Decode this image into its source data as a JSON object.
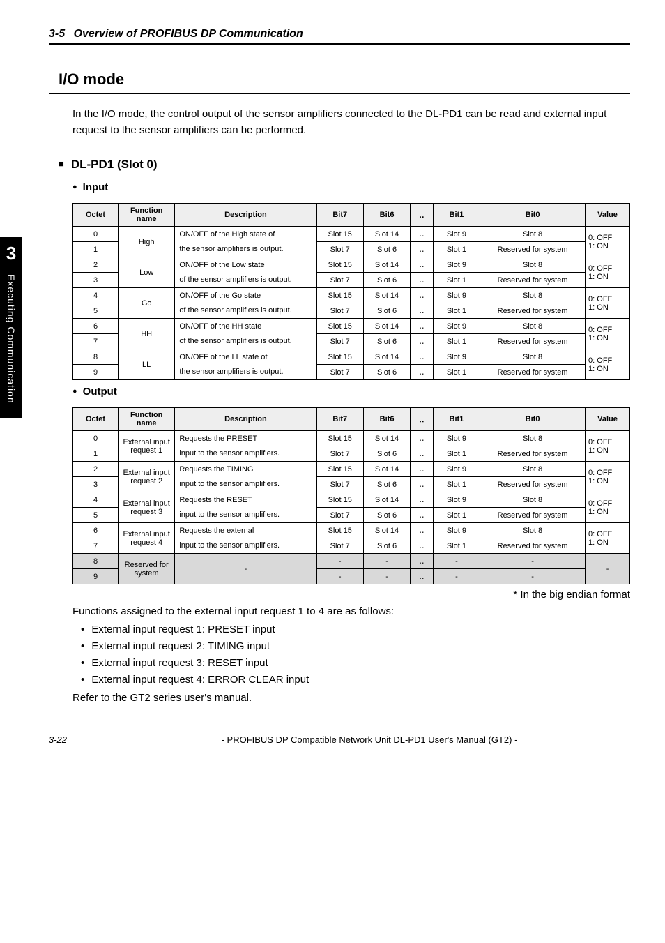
{
  "sideTab": {
    "num": "3",
    "text": "Executing Communication"
  },
  "sectionHeader": {
    "num": "3-5",
    "title": "Overview of PROFIBUS DP Communication"
  },
  "io": {
    "heading": "I/O mode",
    "intro": "In the I/O mode, the control output of the sensor amplifiers connected to the DL-PD1 can be read and external input request to the sensor amplifiers can be performed.",
    "slotHeading": "DL-PD1 (Slot 0)",
    "inputLabel": "Input",
    "outputLabel": "Output",
    "headers": {
      "octet": "Octet",
      "fn": "Function name",
      "desc": "Description",
      "b7": "Bit7",
      "b6": "Bit6",
      "dots": "‥",
      "b1": "Bit1",
      "b0": "Bit0",
      "val": "Value"
    },
    "valueText": {
      "off": "0: OFF",
      "on": "1: ON"
    },
    "inputRows": [
      {
        "o0": "0",
        "o1": "1",
        "fn": "High",
        "desc0": "ON/OFF of the High state of",
        "desc1": "the sensor amplifiers is output."
      },
      {
        "o0": "2",
        "o1": "3",
        "fn": "Low",
        "desc0": "ON/OFF of the Low state",
        "desc1": "of the sensor amplifiers is output."
      },
      {
        "o0": "4",
        "o1": "5",
        "fn": "Go",
        "desc0": "ON/OFF of the Go state",
        "desc1": "of the sensor amplifiers is output."
      },
      {
        "o0": "6",
        "o1": "7",
        "fn": "HH",
        "desc0": "ON/OFF of the HH state",
        "desc1": "of the sensor amplifiers is output."
      },
      {
        "o0": "8",
        "o1": "9",
        "fn": "LL",
        "desc0": "ON/OFF of the LL state of",
        "desc1": "the sensor amplifiers is output."
      }
    ],
    "outputRows": [
      {
        "o0": "0",
        "o1": "1",
        "fn": "External input request 1",
        "desc0": "Requests the PRESET",
        "desc1": "input to the sensor amplifiers."
      },
      {
        "o0": "2",
        "o1": "3",
        "fn": "External input request 2",
        "desc0": "Requests the TIMING",
        "desc1": "input to the sensor amplifiers."
      },
      {
        "o0": "4",
        "o1": "5",
        "fn": "External input request 3",
        "desc0": "Requests the RESET",
        "desc1": "input to the sensor amplifiers."
      },
      {
        "o0": "6",
        "o1": "7",
        "fn": "External input request 4",
        "desc0": "Requests the external",
        "desc1": "input to the sensor amplifiers."
      }
    ],
    "outputReserved": {
      "o0": "8",
      "o1": "9",
      "fn": "Reserved for system",
      "dash": "-",
      "dots": "‥"
    },
    "bitRow0": {
      "b7": "Slot 15",
      "b6": "Slot 14",
      "dots": "‥",
      "b1": "Slot 9",
      "b0": "Slot 8"
    },
    "bitRow1": {
      "b7": "Slot 7",
      "b6": "Slot 6",
      "dots": "‥",
      "b1": "Slot 1",
      "b0": "Reserved for system"
    },
    "footnote": "* In the big endian format",
    "assignedText": "Functions assigned to the external input request 1 to 4 are as follows:",
    "bullets": [
      "External input request 1: PRESET input",
      "External input request 2: TIMING input",
      "External input request 3: RESET input",
      "External input request 4: ERROR CLEAR input"
    ],
    "refer": "Refer to the GT2 series user's manual."
  },
  "footer": {
    "page": "3-22",
    "title": "- PROFIBUS DP Compatible Network Unit DL-PD1 User's Manual (GT2) -"
  }
}
